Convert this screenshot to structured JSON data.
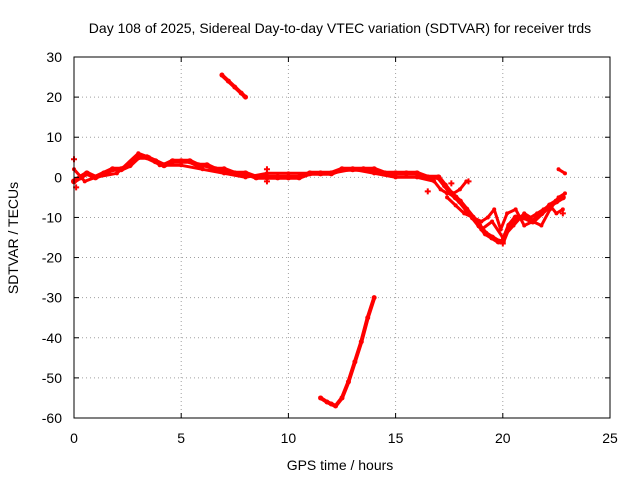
{
  "chart_data": {
    "type": "scatter",
    "title": "Day 108 of 2025, Sidereal Day-to-day VTEC variation (SDTVAR) for receiver trds",
    "xlabel": "GPS time / hours",
    "ylabel": "SDTVAR / TECUs",
    "xlim": [
      0,
      25
    ],
    "ylim": [
      -60,
      30
    ],
    "xticks": [
      0,
      5,
      10,
      15,
      20,
      25
    ],
    "yticks": [
      -60,
      -50,
      -40,
      -30,
      -20,
      -10,
      0,
      10,
      20,
      30
    ],
    "grid": true,
    "color": "#ff0000",
    "series": [
      {
        "name": "main-band",
        "width": 5,
        "x": [
          0.0,
          0.3,
          0.6,
          1.0,
          1.4,
          1.8,
          2.2,
          2.6,
          3.0,
          3.4,
          3.8,
          4.2,
          4.6,
          5.0,
          5.4,
          5.8,
          6.2,
          6.6,
          7.0,
          7.5,
          8.0,
          8.5,
          9.0,
          9.5,
          10.0,
          10.5,
          11.0,
          11.5,
          12.0,
          12.5,
          13.0,
          13.5,
          14.0,
          14.5,
          15.0,
          15.5,
          16.0,
          16.5,
          17.0,
          17.3,
          17.6,
          17.8,
          18.0,
          18.3,
          18.6,
          18.9,
          19.2,
          19.5,
          19.8,
          20.0,
          20.3,
          20.6,
          21.0,
          21.4,
          21.8,
          22.2,
          22.5,
          22.8
        ],
        "y": [
          -1,
          0,
          1,
          0,
          1,
          2,
          2,
          3,
          5,
          5,
          4,
          3,
          4,
          4,
          4,
          3,
          3,
          2,
          2,
          1,
          1,
          0,
          0,
          0,
          0,
          0,
          1,
          1,
          1,
          2,
          2,
          2,
          2,
          1,
          1,
          1,
          1,
          0,
          0,
          -2,
          -4,
          -5,
          -6,
          -8,
          -10,
          -12,
          -14,
          -15,
          -16,
          -16,
          -12,
          -10,
          -10,
          -11,
          -9,
          -7,
          -6,
          -5
        ]
      },
      {
        "name": "lower-band",
        "width": 3,
        "x": [
          0.0,
          0.5,
          1.0,
          2.0,
          3.0,
          3.5,
          4.0,
          5.0,
          6.0,
          7.0,
          8.0,
          9.0,
          10.0,
          11.0,
          12.0,
          13.0,
          14.0,
          15.0,
          16.0,
          16.8,
          17.1,
          17.4,
          17.7,
          18.0,
          18.3
        ],
        "y": [
          2,
          -1,
          0,
          1,
          6,
          5,
          3,
          3,
          2,
          1,
          0,
          1,
          1,
          1,
          1,
          2,
          1,
          0,
          0,
          -1,
          -3,
          -4,
          -4,
          -3,
          -1
        ]
      },
      {
        "name": "upper-band",
        "width": 3,
        "x": [
          17.4,
          17.8,
          18.2,
          18.6,
          19.0,
          19.3,
          19.6,
          19.9,
          20.2,
          20.6,
          21.0,
          21.4,
          21.8,
          22.2,
          22.6,
          22.9
        ],
        "y": [
          -5,
          -7,
          -9,
          -10,
          -11,
          -10,
          -8,
          -13,
          -9,
          -8,
          -12,
          -11,
          -12,
          -8,
          -5,
          -4
        ]
      },
      {
        "name": "late-branch",
        "width": 3,
        "x": [
          19.0,
          19.5,
          20.0,
          20.5,
          21.0,
          21.3,
          21.6,
          21.9,
          22.2,
          22.5,
          22.8
        ],
        "y": [
          -13,
          -11,
          -15,
          -12,
          -9,
          -10,
          -9,
          -8,
          -7,
          -9,
          -8
        ]
      },
      {
        "name": "arc-top",
        "width": 4,
        "x": [
          6.9,
          7.2,
          7.5,
          7.8,
          8.0
        ],
        "y": [
          25.5,
          24,
          22.5,
          21,
          20
        ]
      },
      {
        "name": "arc-bottom",
        "width": 4,
        "x": [
          11.5,
          11.8,
          12.0,
          12.2,
          12.5,
          12.8,
          13.1,
          13.4,
          13.7,
          14.0
        ],
        "y": [
          -55,
          -56,
          -56.5,
          -57,
          -55,
          -51,
          -46,
          -41,
          -35,
          -30
        ]
      },
      {
        "name": "end-segment",
        "width": 3,
        "x": [
          22.6,
          22.9
        ],
        "y": [
          2,
          1
        ]
      }
    ],
    "scattered_points": [
      {
        "x": 0.0,
        "y": 4.5
      },
      {
        "x": 0.1,
        "y": -2.5
      },
      {
        "x": 9.0,
        "y": -1
      },
      {
        "x": 9.0,
        "y": 2
      },
      {
        "x": 16.5,
        "y": -3.5
      },
      {
        "x": 17.6,
        "y": -1.5
      },
      {
        "x": 18.4,
        "y": -1.0
      },
      {
        "x": 20.0,
        "y": -16.5
      },
      {
        "x": 22.8,
        "y": -9.0
      }
    ]
  }
}
